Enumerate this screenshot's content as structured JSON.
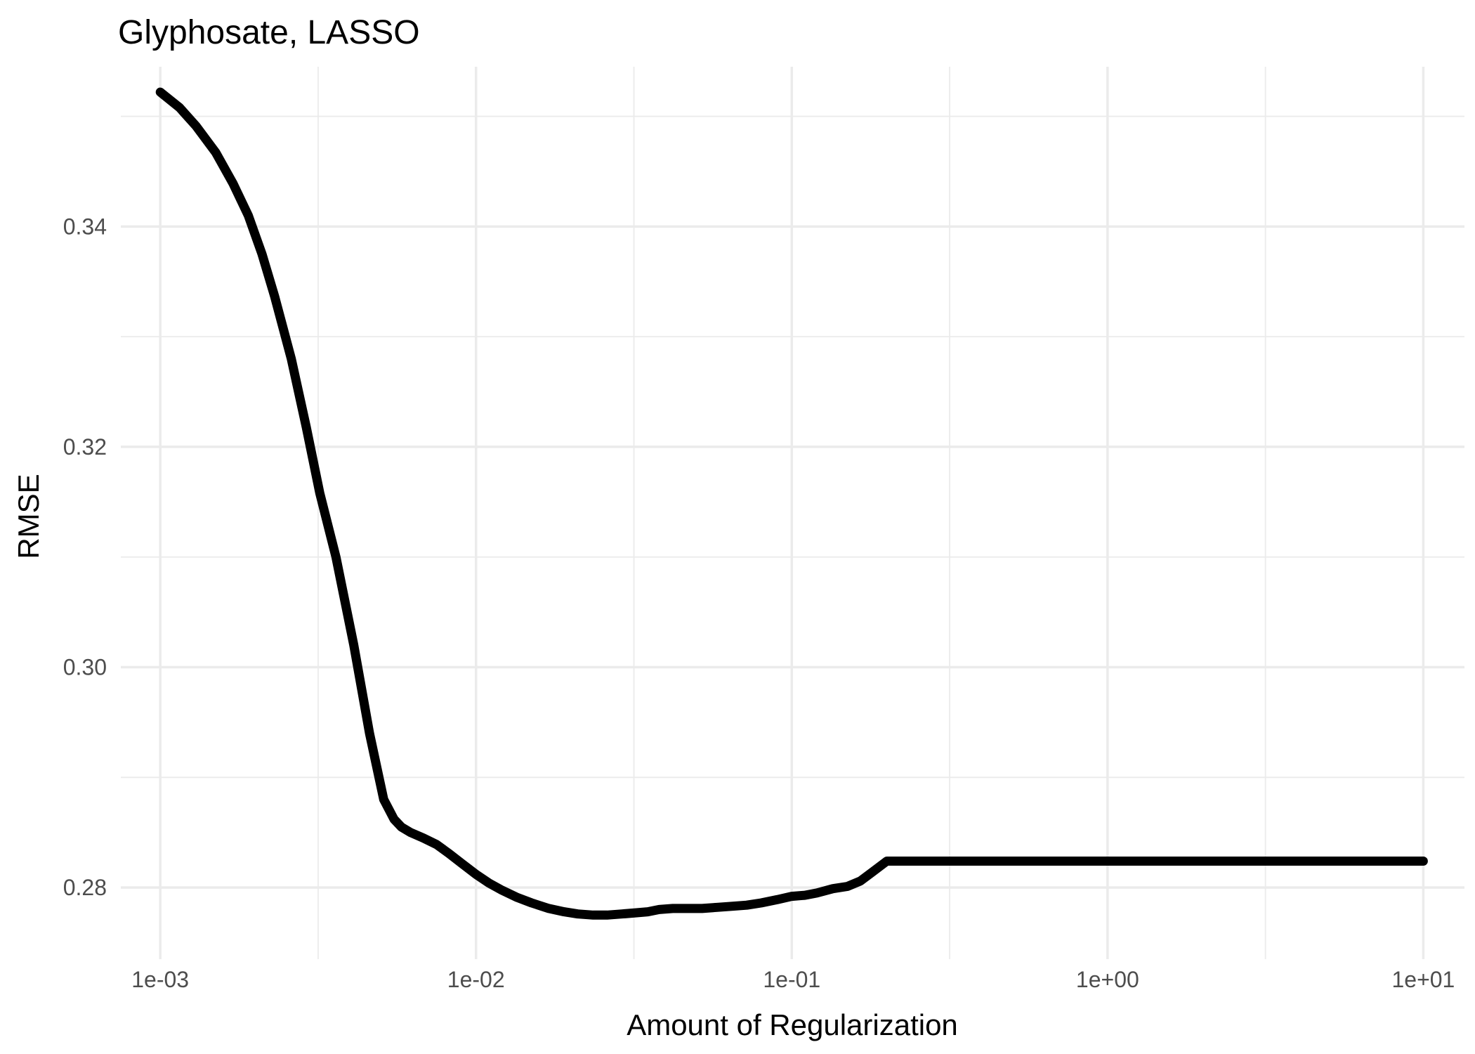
{
  "chart_data": {
    "type": "line",
    "title": "Glyphosate, LASSO",
    "xlabel": "Amount of Regularization",
    "ylabel": "RMSE",
    "x_scale": "log10",
    "xlim": [
      0.00075,
      13.5
    ],
    "ylim": [
      0.2735,
      0.3545
    ],
    "x_ticks": [
      0.001,
      0.01,
      0.1,
      1,
      10
    ],
    "x_tick_labels": [
      "1e-03",
      "1e-02",
      "1e-01",
      "1e+00",
      "1e+01"
    ],
    "y_ticks": [
      0.28,
      0.3,
      0.32,
      0.34
    ],
    "y_tick_labels": [
      "0.28",
      "0.30",
      "0.32",
      "0.34"
    ],
    "grid": true,
    "legend": "none",
    "line_color": "#000000",
    "series": [
      {
        "x": [
          0.001,
          0.00115,
          0.0013,
          0.0015,
          0.0017,
          0.0019,
          0.0021,
          0.0023,
          0.0026,
          0.0029,
          0.0032,
          0.0036,
          0.0041,
          0.0046,
          0.0051,
          0.0055,
          0.0058,
          0.0062,
          0.0068,
          0.0075,
          0.0082,
          0.009,
          0.01,
          0.011,
          0.012,
          0.0135,
          0.015,
          0.017,
          0.019,
          0.021,
          0.0235,
          0.026,
          0.029,
          0.032,
          0.035,
          0.038,
          0.042,
          0.047,
          0.052,
          0.058,
          0.065,
          0.072,
          0.08,
          0.09,
          0.1,
          0.11,
          0.12,
          0.135,
          0.15,
          0.165,
          0.18,
          0.2,
          0.3,
          0.5,
          1,
          2,
          5,
          10
        ],
        "y": [
          0.3522,
          0.3508,
          0.3491,
          0.3467,
          0.3439,
          0.341,
          0.3375,
          0.3337,
          0.328,
          0.3218,
          0.3158,
          0.31,
          0.302,
          0.294,
          0.288,
          0.2862,
          0.2855,
          0.285,
          0.2845,
          0.2839,
          0.2831,
          0.2822,
          0.2812,
          0.2804,
          0.2798,
          0.2791,
          0.2786,
          0.2781,
          0.2778,
          0.2776,
          0.2775,
          0.2775,
          0.2776,
          0.2777,
          0.2778,
          0.278,
          0.2781,
          0.2781,
          0.2781,
          0.2782,
          0.2783,
          0.2784,
          0.2786,
          0.2789,
          0.2792,
          0.2793,
          0.2795,
          0.2799,
          0.2801,
          0.2806,
          0.2814,
          0.2824,
          0.2824,
          0.2824,
          0.2824,
          0.2824,
          0.2824,
          0.2824
        ]
      }
    ]
  }
}
